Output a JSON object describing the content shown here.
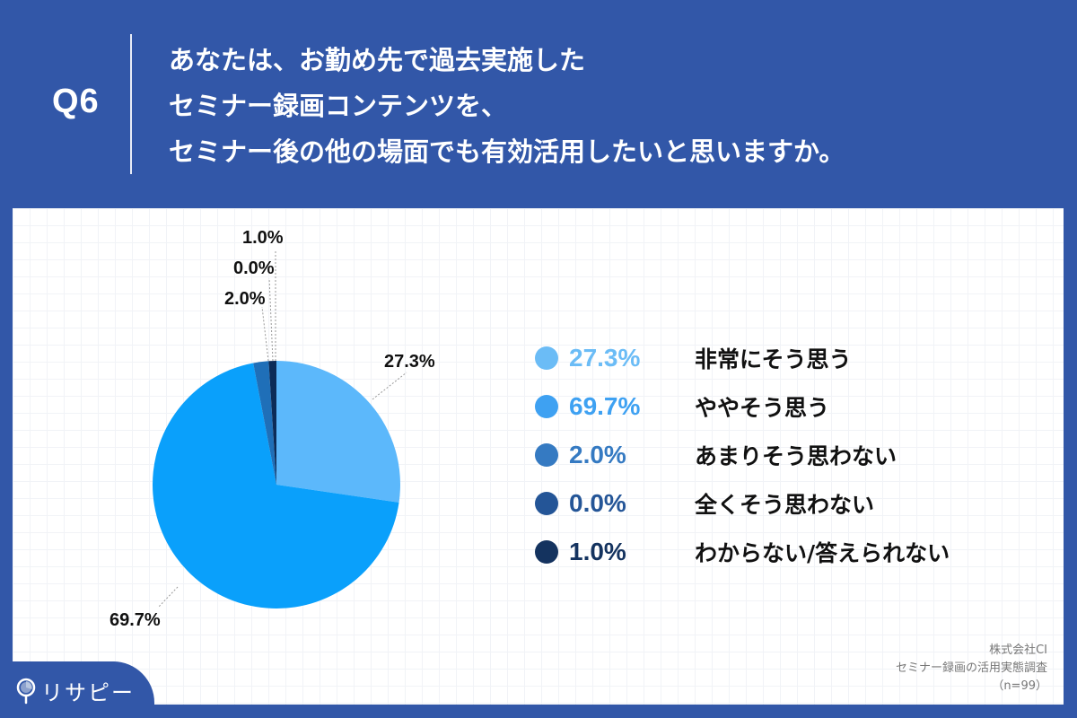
{
  "header": {
    "question_number": "Q6",
    "question_lines": [
      "あなたは、お勤め先で過去実施した",
      "セミナー録画コンテンツを、",
      "セミナー後の他の場面でも有効活用したいと思いますか。"
    ]
  },
  "legend": [
    {
      "pct": "27.3%",
      "label": "非常にそう思う",
      "color": "#6bbcf6"
    },
    {
      "pct": "69.7%",
      "label": "ややそう思う",
      "color": "#3ea1f2"
    },
    {
      "pct": "2.0%",
      "label": "あまりそう思わない",
      "color": "#357ac2"
    },
    {
      "pct": "0.0%",
      "label": "全くそう思わない",
      "color": "#245597"
    },
    {
      "pct": "1.0%",
      "label": "わからない/答えられない",
      "color": "#14335f"
    }
  ],
  "pie_labels": {
    "a": "27.3%",
    "b": "69.7%",
    "c": "2.0%",
    "d": "0.0%",
    "e": "1.0%"
  },
  "source": {
    "company": "株式会社CI",
    "survey": "セミナー録画の活用実態調査",
    "sample": "（n=99）"
  },
  "logo": {
    "text": "リサピー"
  },
  "chart_data": {
    "type": "pie",
    "title": "あなたは、お勤め先で過去実施したセミナー録画コンテンツを、セミナー後の他の場面でも有効活用したいと思いますか。",
    "categories": [
      "非常にそう思う",
      "ややそう思う",
      "あまりそう思わない",
      "全くそう思わない",
      "わからない/答えられない"
    ],
    "values": [
      27.3,
      69.7,
      2.0,
      0.0,
      1.0
    ],
    "unit": "%",
    "colors": [
      "#5cb8fb",
      "#0aa0fb",
      "#1f6fb8",
      "#245597",
      "#0c2c58"
    ],
    "start_angle": "12 o'clock, clockwise",
    "legend_position": "right",
    "n": 99
  }
}
